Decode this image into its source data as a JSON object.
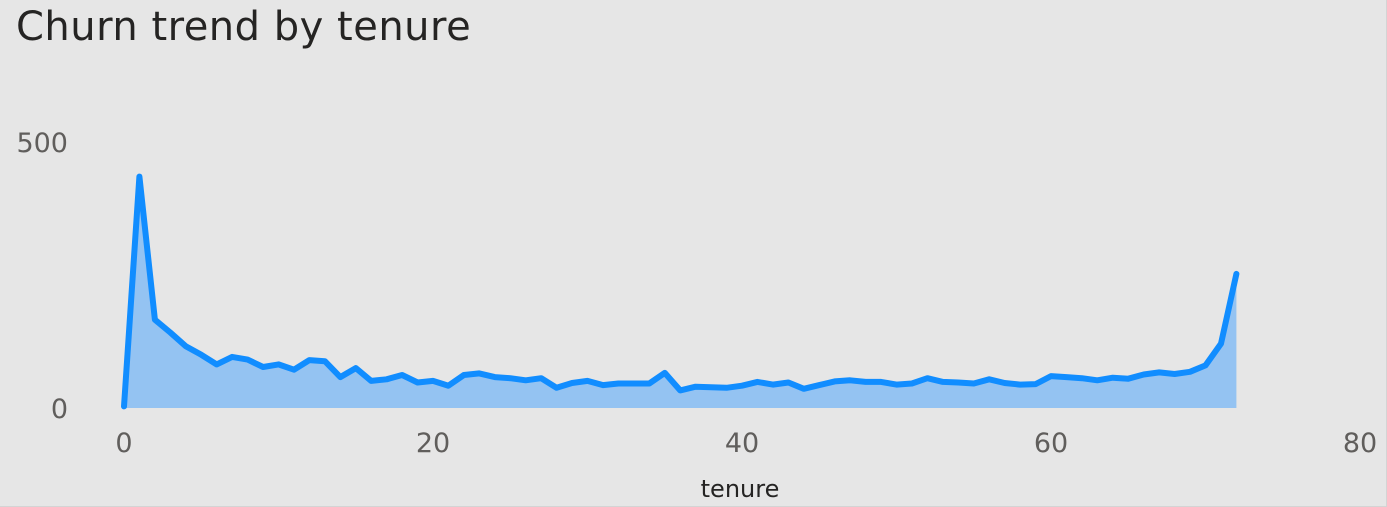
{
  "chart_data": {
    "type": "area",
    "title": "Churn trend by tenure",
    "xlabel": "tenure",
    "ylabel": "",
    "xlim": [
      0,
      80
    ],
    "ylim": [
      0,
      500
    ],
    "x_ticks": [
      "0",
      "20",
      "40",
      "60",
      "80"
    ],
    "y_ticks": [
      "0",
      "500"
    ],
    "grid": false,
    "legend": "none",
    "colors": {
      "line": "#118dff",
      "fill": "#94c3f2",
      "background": "#e6e6e6"
    },
    "x": [
      0,
      1,
      2,
      3,
      4,
      5,
      6,
      7,
      8,
      9,
      10,
      11,
      12,
      13,
      14,
      15,
      16,
      17,
      18,
      19,
      20,
      21,
      22,
      23,
      24,
      25,
      26,
      27,
      28,
      29,
      30,
      31,
      32,
      33,
      34,
      35,
      36,
      37,
      38,
      39,
      40,
      41,
      42,
      43,
      44,
      45,
      46,
      47,
      48,
      49,
      50,
      51,
      52,
      53,
      54,
      55,
      56,
      57,
      58,
      59,
      60,
      61,
      62,
      63,
      64,
      65,
      66,
      67,
      68,
      69,
      70,
      71,
      72
    ],
    "series": [
      {
        "values": [
          3,
          435,
          166,
          142,
          116,
          100,
          82,
          96,
          91,
          77,
          82,
          72,
          90,
          88,
          58,
          75,
          51,
          54,
          62,
          48,
          51,
          42,
          62,
          65,
          58,
          56,
          52,
          56,
          38,
          47,
          51,
          43,
          46,
          46,
          46,
          66,
          33,
          40,
          39,
          38,
          42,
          49,
          44,
          48,
          36,
          43,
          50,
          52,
          49,
          49,
          44,
          46,
          56,
          49,
          48,
          46,
          54,
          47,
          44,
          45,
          60,
          58,
          56,
          52,
          57,
          55,
          63,
          67,
          64,
          68,
          80,
          121,
          252
        ]
      }
    ]
  }
}
